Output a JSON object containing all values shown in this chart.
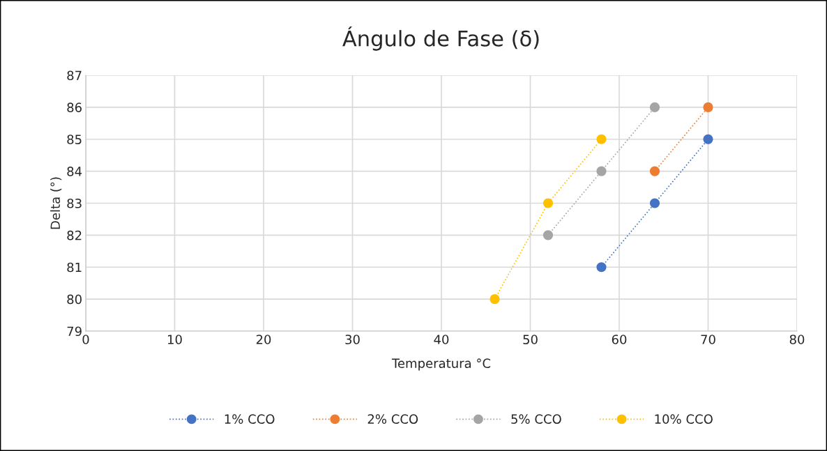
{
  "chart_data": {
    "type": "line",
    "title": "Ángulo de Fase (δ)",
    "xlabel": "Temperatura °C",
    "ylabel": "Delta (°)",
    "series": [
      {
        "name": "1% CCO",
        "color": "#4472c4",
        "x": [
          58,
          64,
          70
        ],
        "values": [
          81,
          83,
          85
        ]
      },
      {
        "name": "2% CCO",
        "color": "#ed7d31",
        "x": [
          64,
          70
        ],
        "values": [
          84,
          86
        ]
      },
      {
        "name": "5% CCO",
        "color": "#a5a5a5",
        "x": [
          52,
          58,
          64
        ],
        "values": [
          82,
          84,
          86
        ]
      },
      {
        "name": "10% CCO",
        "color": "#ffc000",
        "x": [
          46,
          52,
          58
        ],
        "values": [
          80,
          83,
          85
        ]
      }
    ],
    "xlim": [
      0,
      80
    ],
    "xticks": [
      0,
      10,
      20,
      30,
      40,
      50,
      60,
      70,
      80
    ],
    "ylim": [
      79,
      87
    ],
    "yticks": [
      79,
      80,
      81,
      82,
      83,
      84,
      85,
      86,
      87
    ],
    "grid": true,
    "legend": "bottom",
    "marker": "circle",
    "line_style": "dotted"
  }
}
